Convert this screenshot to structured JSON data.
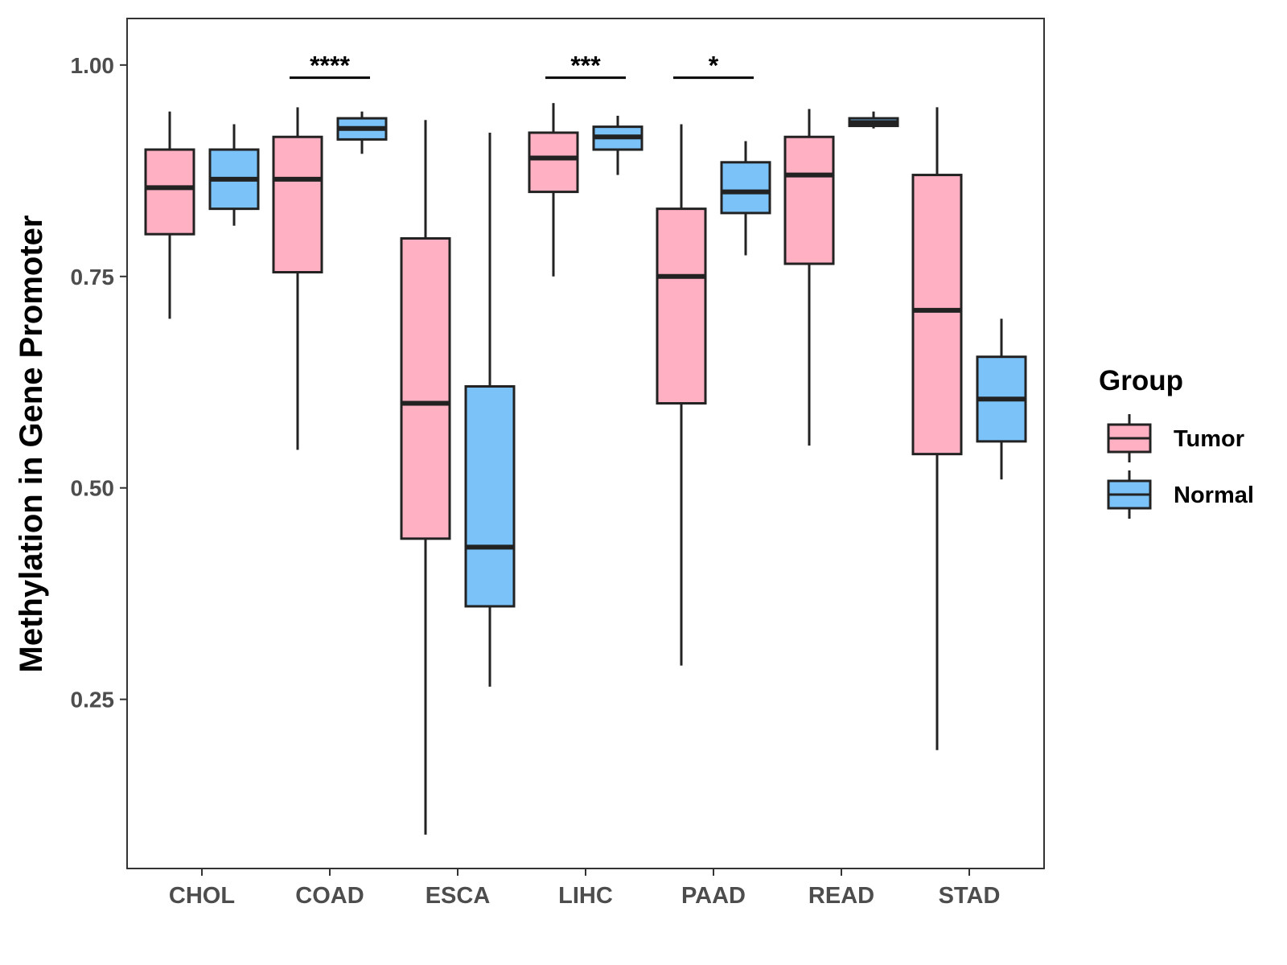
{
  "chart_data": {
    "type": "boxplot",
    "title": "",
    "xlabel": "",
    "ylabel": "Methylation in Gene Promoter",
    "ylim": [
      0.05,
      1.055
    ],
    "yticks": [
      0.25,
      0.5,
      0.75,
      1.0
    ],
    "ytick_labels": [
      "0.25",
      "0.50",
      "0.75",
      "1.00"
    ],
    "grid": false,
    "legend": {
      "title": "Group",
      "position": "right",
      "entries": [
        {
          "name": "Tumor",
          "color": "#FFB0C2"
        },
        {
          "name": "Normal",
          "color": "#7AC2F8"
        }
      ]
    },
    "categories": [
      "CHOL",
      "COAD",
      "ESCA",
      "LIHC",
      "PAAD",
      "READ",
      "STAD"
    ],
    "series": [
      {
        "name": "Tumor",
        "color": "#FFB0C2",
        "boxes": [
          {
            "category": "CHOL",
            "min": 0.7,
            "q1": 0.8,
            "median": 0.855,
            "q3": 0.9,
            "max": 0.945
          },
          {
            "category": "COAD",
            "min": 0.545,
            "q1": 0.755,
            "median": 0.865,
            "q3": 0.915,
            "max": 0.95
          },
          {
            "category": "ESCA",
            "min": 0.09,
            "q1": 0.44,
            "median": 0.6,
            "q3": 0.795,
            "max": 0.935
          },
          {
            "category": "LIHC",
            "min": 0.75,
            "q1": 0.85,
            "median": 0.89,
            "q3": 0.92,
            "max": 0.955
          },
          {
            "category": "PAAD",
            "min": 0.29,
            "q1": 0.6,
            "median": 0.75,
            "q3": 0.83,
            "max": 0.93
          },
          {
            "category": "READ",
            "min": 0.55,
            "q1": 0.765,
            "median": 0.87,
            "q3": 0.915,
            "max": 0.948
          },
          {
            "category": "STAD",
            "min": 0.19,
            "q1": 0.54,
            "median": 0.71,
            "q3": 0.87,
            "max": 0.95
          }
        ]
      },
      {
        "name": "Normal",
        "color": "#7AC2F8",
        "boxes": [
          {
            "category": "CHOL",
            "min": 0.81,
            "q1": 0.83,
            "median": 0.865,
            "q3": 0.9,
            "max": 0.93
          },
          {
            "category": "COAD",
            "min": 0.895,
            "q1": 0.912,
            "median": 0.925,
            "q3": 0.937,
            "max": 0.945
          },
          {
            "category": "ESCA",
            "min": 0.265,
            "q1": 0.36,
            "median": 0.43,
            "q3": 0.62,
            "max": 0.92
          },
          {
            "category": "LIHC",
            "min": 0.87,
            "q1": 0.9,
            "median": 0.915,
            "q3": 0.927,
            "max": 0.94
          },
          {
            "category": "PAAD",
            "min": 0.775,
            "q1": 0.825,
            "median": 0.85,
            "q3": 0.885,
            "max": 0.91
          },
          {
            "category": "READ",
            "min": 0.925,
            "q1": 0.928,
            "median": 0.932,
            "q3": 0.937,
            "max": 0.945
          },
          {
            "category": "STAD",
            "min": 0.51,
            "q1": 0.555,
            "median": 0.605,
            "q3": 0.655,
            "max": 0.7
          }
        ]
      }
    ],
    "annotations": [
      {
        "category": "COAD",
        "label": "****",
        "y": 0.985
      },
      {
        "category": "LIHC",
        "label": "***",
        "y": 0.985
      },
      {
        "category": "PAAD",
        "label": "*",
        "y": 0.985
      }
    ]
  }
}
